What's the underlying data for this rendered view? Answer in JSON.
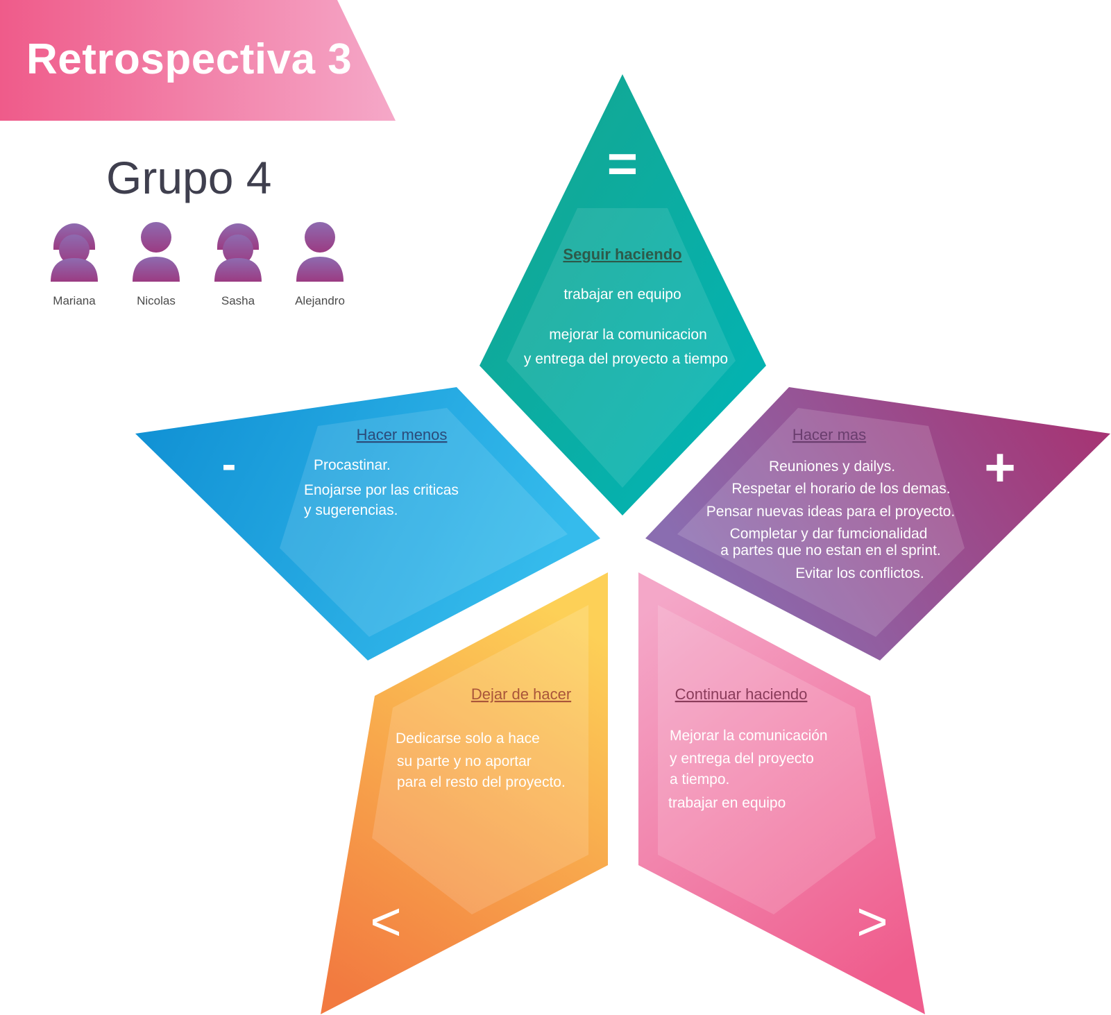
{
  "banner": {
    "title": "Retrospectiva 3"
  },
  "group": {
    "title": "Grupo 4",
    "members": [
      {
        "name": "Mariana",
        "avatar": "female-user-icon"
      },
      {
        "name": "Nicolas",
        "avatar": "male-user-icon"
      },
      {
        "name": "Sasha",
        "avatar": "female-user-icon"
      },
      {
        "name": "Alejandro",
        "avatar": "male-user-icon"
      }
    ]
  },
  "petals": {
    "seguir": {
      "symbol": "=",
      "title": "Seguir haciendo",
      "lines": [
        "trabajar en equipo",
        "mejorar la comunicacion",
        "y entrega del proyecto a tiempo"
      ],
      "colors": [
        "#16a58d",
        "#00b5b8"
      ],
      "title_color": "#2d5a4a"
    },
    "menos": {
      "symbol": "-",
      "title": "Hacer menos",
      "lines": [
        "Procastinar.",
        "Enojarse por las criticas",
        "y sugerencias."
      ],
      "colors": [
        "#0f8fd3",
        "#35bbec"
      ],
      "title_color": "#2b4b7a"
    },
    "mas": {
      "symbol": "+",
      "title": "Hacer mas",
      "lines": [
        "Reuniones y dailys.",
        "Respetar el horario de los demas.",
        "Pensar nuevas ideas para el proyecto.",
        "Completar y dar fumcionalidad",
        "a partes que no estan en el sprint.",
        "Evitar los conflictos."
      ],
      "colors": [
        "#8a6db0",
        "#a8306f"
      ],
      "title_color": "#6a3d6e"
    },
    "dejar": {
      "symbol": "<",
      "title": "Dejar de hacer",
      "lines": [
        "Dedicarse solo a hace",
        "su parte y no aportar",
        "para el resto del proyecto."
      ],
      "colors": [
        "#fdd057",
        "#f27a40"
      ],
      "title_color": "#a9553a"
    },
    "continuar": {
      "symbol": ">",
      "title": "Continuar haciendo",
      "lines": [
        "Mejorar la comunicación",
        "y entrega del proyecto",
        "a tiempo.",
        "trabajar en equipo"
      ],
      "colors": [
        "#f4a7c8",
        "#ef5d8d"
      ],
      "title_color": "#8a3b5a"
    }
  },
  "banner_colors": [
    "#ef5b8a",
    "#f5a8c8"
  ],
  "avatar_colors": [
    "#8e6bb0",
    "#9b3b82"
  ]
}
